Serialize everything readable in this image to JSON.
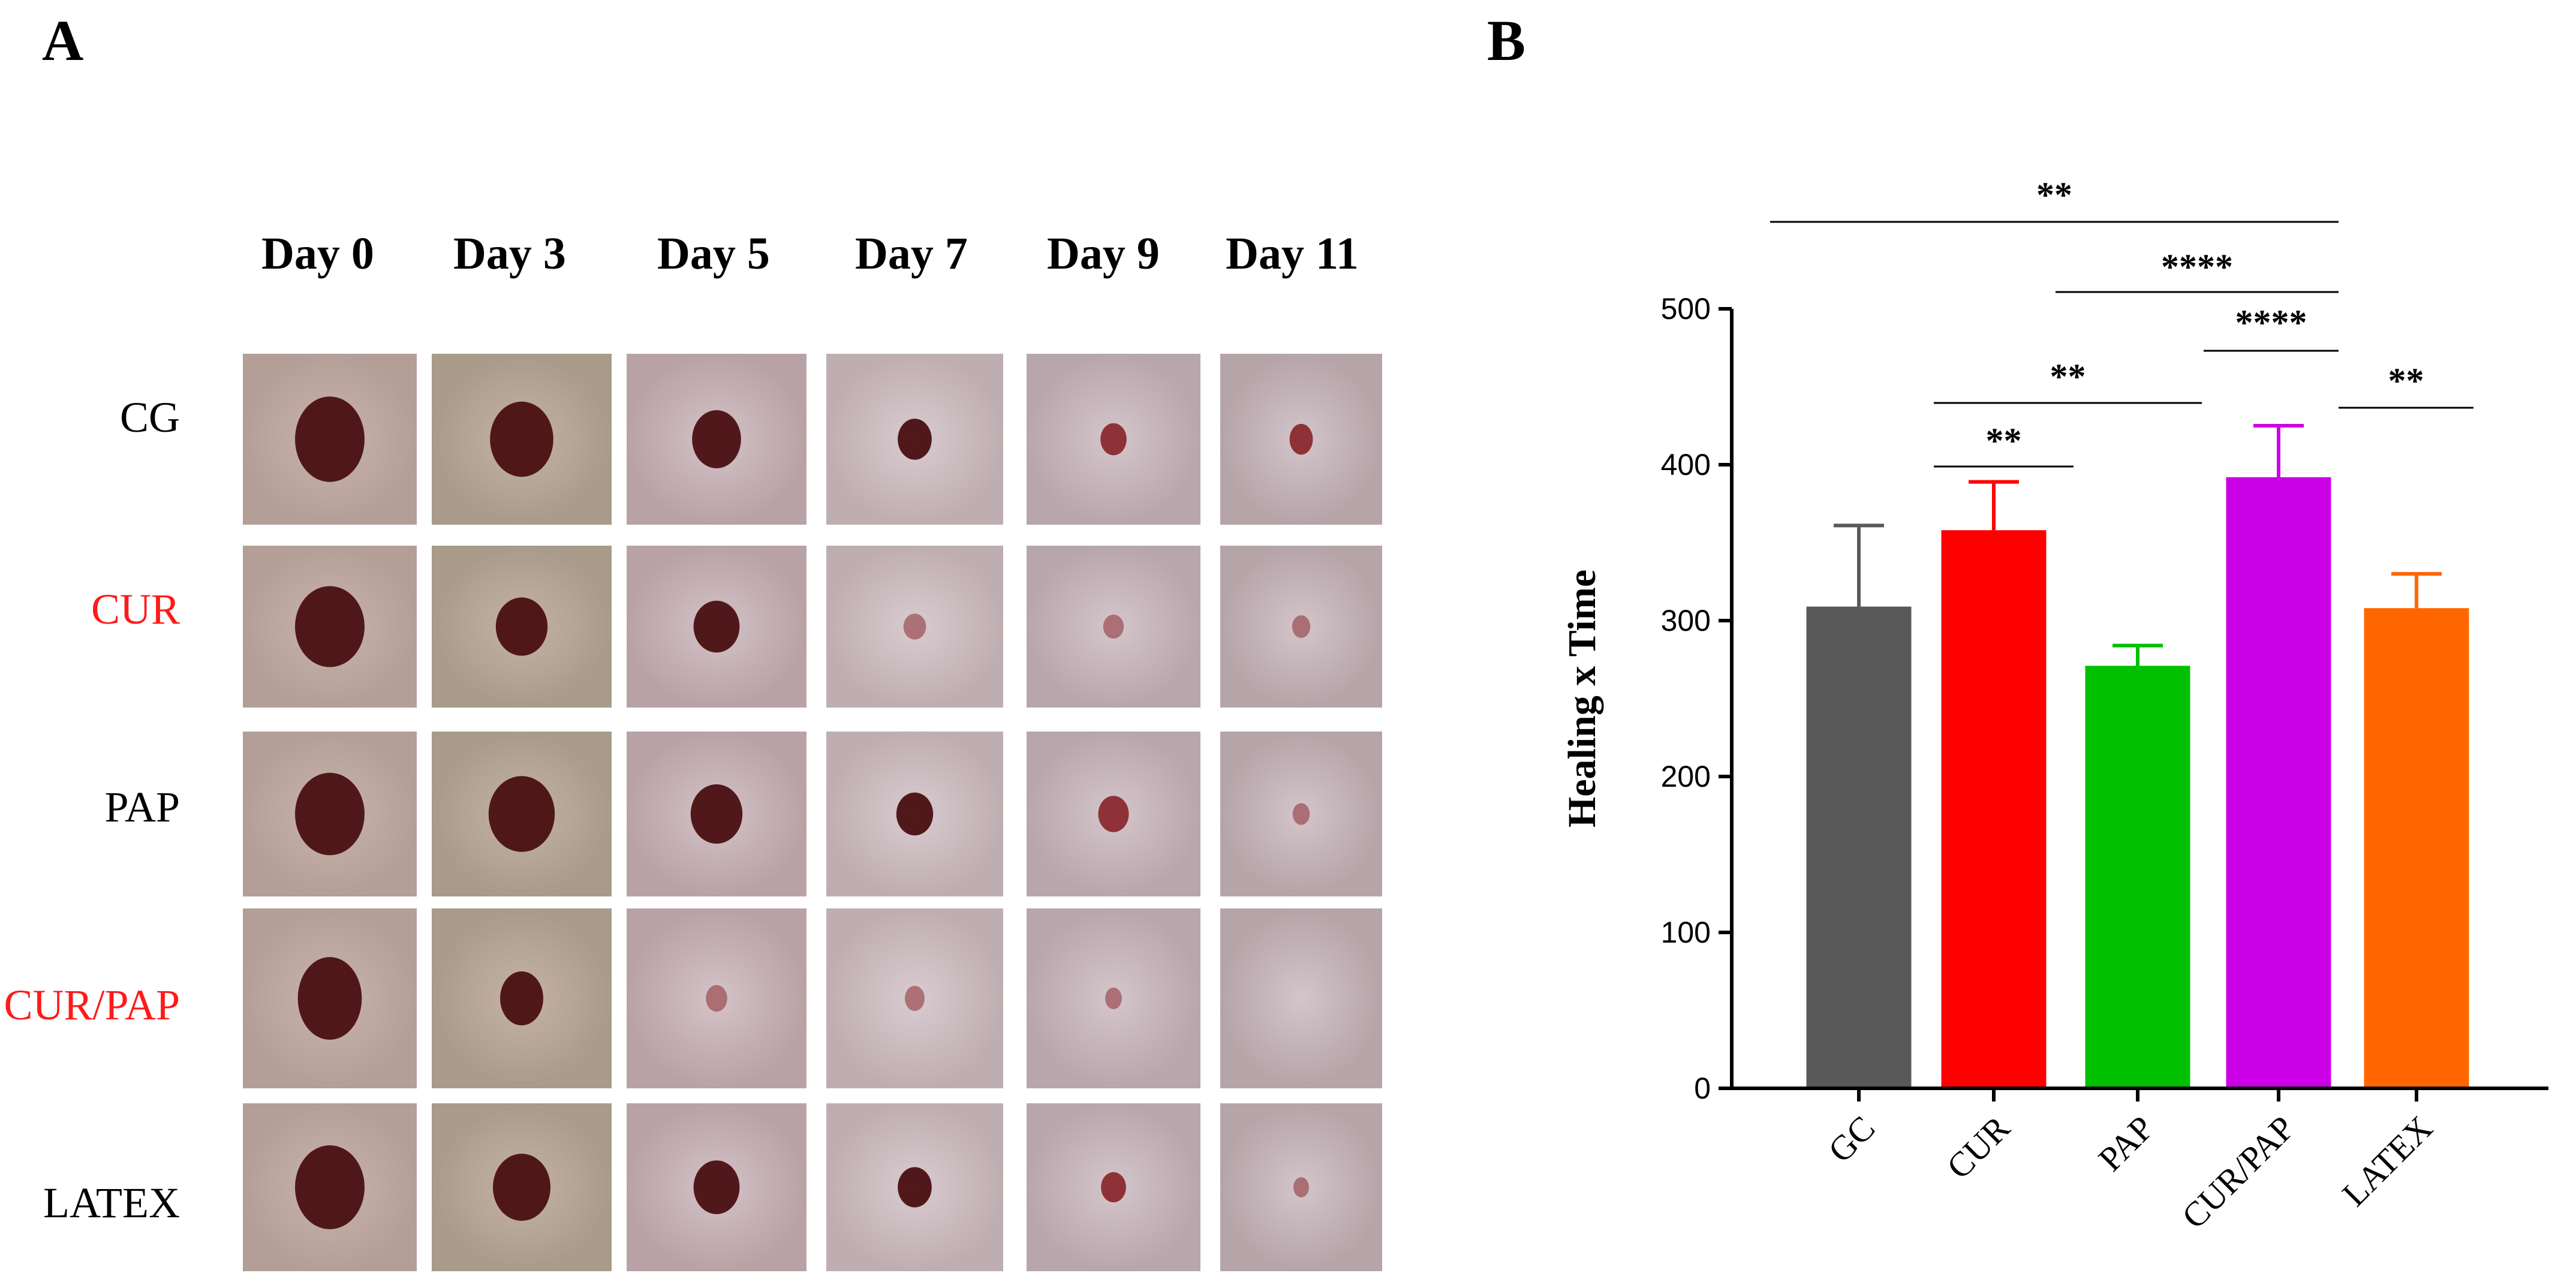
{
  "panel_a": {
    "letter": "A",
    "day_labels": [
      "Day 0",
      "Day 3",
      "Day 5",
      "Day 7",
      "Day 9",
      "Day 11"
    ],
    "groups": [
      {
        "label": "CG",
        "color": "#000000"
      },
      {
        "label": "CUR",
        "color": "#ff1a1a"
      },
      {
        "label": "PAP",
        "color": "#000000"
      },
      {
        "label": "CUR/PAP",
        "color": "#ff1a1a"
      },
      {
        "label": "LATEX",
        "color": "#000000"
      }
    ],
    "wound_size": [
      [
        1.0,
        0.85,
        0.6,
        0.35,
        0.22,
        0.2
      ],
      [
        1.0,
        0.65,
        0.55,
        0.15,
        0.12,
        0.1
      ],
      [
        1.0,
        0.9,
        0.65,
        0.4,
        0.3,
        0.08
      ],
      [
        0.9,
        0.5,
        0.12,
        0.1,
        0.05,
        0.0
      ],
      [
        1.0,
        0.75,
        0.55,
        0.35,
        0.2,
        0.05
      ]
    ]
  },
  "chart_data": {
    "type": "bar",
    "panel_letter": "B",
    "categories": [
      "GC",
      "CUR",
      "PAP",
      "CUR/PAP",
      "LATEX"
    ],
    "values": [
      309,
      358,
      271,
      392,
      308
    ],
    "errors": [
      52,
      31,
      13,
      33,
      22
    ],
    "colors": [
      "#595959",
      "#ff0000",
      "#00c000",
      "#cc00e6",
      "#ff6600"
    ],
    "ylabel": "Healing x Time",
    "xlabel": "",
    "ylim": [
      0,
      500
    ],
    "yticks": [
      0,
      100,
      200,
      300,
      400,
      500
    ],
    "significance": [
      {
        "from": 0,
        "to": 3,
        "label": "**"
      },
      {
        "from": 2,
        "to": 3,
        "label": "****"
      },
      {
        "from": 3,
        "to": 3,
        "label": "****"
      },
      {
        "from": 1,
        "to": 2,
        "label": "**"
      },
      {
        "from": 1,
        "to": 1,
        "label": "**"
      },
      {
        "from": 3,
        "to": 4,
        "label": "**"
      }
    ]
  }
}
